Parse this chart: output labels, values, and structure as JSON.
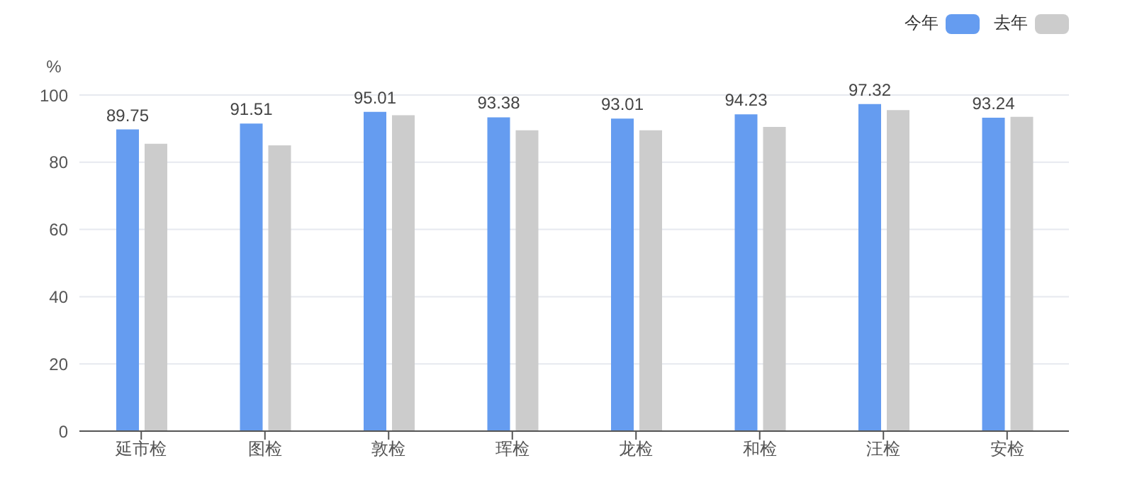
{
  "chart_data": {
    "type": "bar",
    "ylabel": "%",
    "categories": [
      "延市检",
      "图检",
      "敦检",
      "珲检",
      "龙检",
      "和检",
      "汪检",
      "安检"
    ],
    "series": [
      {
        "name": "今年",
        "color": "#659cf0",
        "values": [
          89.75,
          91.51,
          95.01,
          93.38,
          93.01,
          94.23,
          97.32,
          93.24
        ],
        "value_labels": [
          "89.75",
          "91.51",
          "95.01",
          "93.38",
          "93.01",
          "94.23",
          "97.32",
          "93.24"
        ]
      },
      {
        "name": "去年",
        "color": "#cccccc",
        "values": [
          85.5,
          85,
          94,
          89.5,
          89.5,
          90.5,
          95.5,
          93.5
        ]
      }
    ],
    "ylim": [
      0,
      100
    ],
    "yticks": [
      0,
      20,
      40,
      60,
      80,
      100
    ],
    "grid": "y",
    "legend": "top right"
  }
}
